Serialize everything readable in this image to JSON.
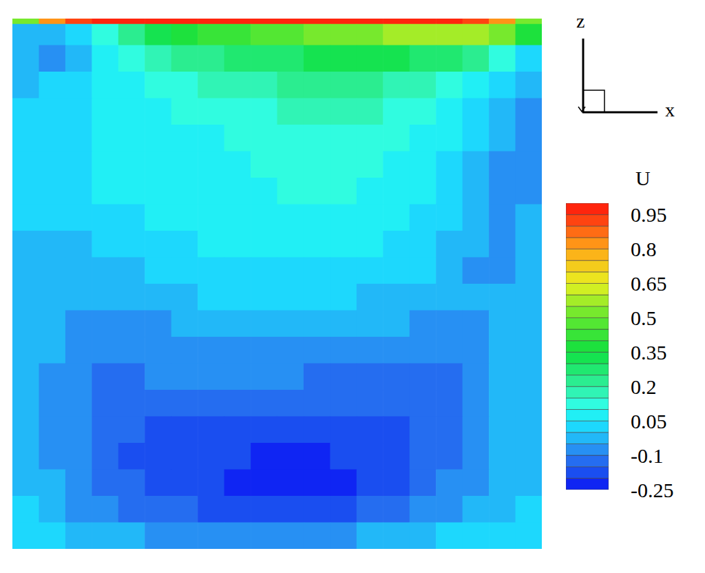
{
  "chart_data": {
    "type": "contour",
    "x_label": "x",
    "y_label": "z",
    "xlim": [
      0,
      1
    ],
    "ylim": [
      0,
      1
    ],
    "tick_labels": false,
    "x_edges": [
      0,
      0.05,
      0.1,
      0.15,
      0.2,
      0.25,
      0.3,
      0.35,
      0.4,
      0.45,
      0.5,
      0.55,
      0.6,
      0.65,
      0.7,
      0.75,
      0.8,
      0.85,
      0.9,
      0.95,
      1
    ],
    "z_edges": [
      1,
      0.99,
      0.95,
      0.9,
      0.85,
      0.8,
      0.75,
      0.7,
      0.65,
      0.6,
      0.55,
      0.5,
      0.45,
      0.4,
      0.35,
      0.3,
      0.25,
      0.2,
      0.15,
      0.1,
      0.05,
      0
    ],
    "values": [
      [
        0.5,
        0.8,
        0.9,
        0.96,
        0.97,
        0.97,
        0.97,
        0.97,
        0.97,
        0.97,
        0.97,
        0.97,
        0.97,
        0.97,
        0.97,
        0.97,
        0.96,
        0.9,
        0.8,
        0.5
      ],
      [
        -0.03,
        -0.05,
        0.0,
        0.1,
        0.2,
        0.3,
        0.35,
        0.4,
        0.42,
        0.45,
        0.47,
        0.5,
        0.5,
        0.52,
        0.55,
        0.55,
        0.55,
        0.55,
        0.5,
        0.35
      ],
      [
        -0.05,
        -0.07,
        -0.03,
        0.05,
        0.1,
        0.15,
        0.2,
        0.22,
        0.25,
        0.27,
        0.28,
        0.3,
        0.3,
        0.3,
        0.3,
        0.28,
        0.25,
        0.2,
        0.12,
        0.03
      ],
      [
        -0.04,
        0.0,
        0.02,
        0.05,
        0.08,
        0.1,
        0.13,
        0.15,
        0.17,
        0.18,
        0.2,
        0.2,
        0.2,
        0.2,
        0.18,
        0.16,
        0.12,
        0.07,
        0.0,
        -0.04
      ],
      [
        0.0,
        0.02,
        0.03,
        0.05,
        0.07,
        0.08,
        0.1,
        0.12,
        0.13,
        0.14,
        0.15,
        0.15,
        0.15,
        0.15,
        0.13,
        0.11,
        0.07,
        0.02,
        -0.04,
        -0.06
      ],
      [
        0.02,
        0.03,
        0.04,
        0.05,
        0.06,
        0.07,
        0.08,
        0.09,
        0.1,
        0.11,
        0.12,
        0.12,
        0.12,
        0.12,
        0.11,
        0.08,
        0.05,
        0.0,
        -0.05,
        -0.06
      ],
      [
        0.02,
        0.03,
        0.04,
        0.05,
        0.06,
        0.06,
        0.07,
        0.08,
        0.09,
        0.1,
        0.11,
        0.11,
        0.11,
        0.1,
        0.09,
        0.07,
        0.03,
        -0.02,
        -0.06,
        -0.06
      ],
      [
        0.02,
        0.03,
        0.04,
        0.05,
        0.05,
        0.06,
        0.06,
        0.07,
        0.08,
        0.09,
        0.1,
        0.1,
        0.1,
        0.09,
        0.07,
        0.05,
        0.02,
        -0.03,
        -0.07,
        -0.06
      ],
      [
        0.0,
        0.01,
        0.02,
        0.03,
        0.04,
        0.05,
        0.05,
        0.06,
        0.06,
        0.07,
        0.07,
        0.07,
        0.07,
        0.06,
        0.05,
        0.03,
        0.0,
        -0.04,
        -0.07,
        -0.05
      ],
      [
        -0.02,
        -0.02,
        -0.01,
        0.0,
        0.02,
        0.03,
        0.04,
        0.05,
        0.05,
        0.06,
        0.06,
        0.06,
        0.05,
        0.05,
        0.04,
        0.02,
        -0.02,
        -0.05,
        -0.07,
        -0.04
      ],
      [
        -0.02,
        -0.03,
        -0.03,
        -0.02,
        -0.01,
        0.0,
        0.02,
        0.03,
        0.04,
        0.04,
        0.04,
        0.04,
        0.04,
        0.03,
        0.02,
        0.0,
        -0.03,
        -0.06,
        -0.07,
        -0.04
      ],
      [
        -0.03,
        -0.04,
        -0.04,
        -0.04,
        -0.03,
        -0.02,
        -0.01,
        0.0,
        0.01,
        0.01,
        0.01,
        0.0,
        0.0,
        -0.01,
        -0.02,
        -0.03,
        -0.04,
        -0.05,
        -0.05,
        -0.02
      ],
      [
        -0.02,
        -0.04,
        -0.06,
        -0.07,
        -0.07,
        -0.06,
        -0.05,
        -0.04,
        -0.04,
        -0.04,
        -0.04,
        -0.04,
        -0.04,
        -0.04,
        -0.05,
        -0.06,
        -0.07,
        -0.07,
        -0.05,
        -0.02
      ],
      [
        -0.02,
        -0.05,
        -0.08,
        -0.09,
        -0.09,
        -0.08,
        -0.07,
        -0.07,
        -0.07,
        -0.07,
        -0.07,
        -0.07,
        -0.08,
        -0.08,
        -0.09,
        -0.1,
        -0.1,
        -0.09,
        -0.05,
        -0.02
      ],
      [
        -0.02,
        -0.06,
        -0.09,
        -0.11,
        -0.11,
        -0.1,
        -0.1,
        -0.1,
        -0.1,
        -0.1,
        -0.1,
        -0.11,
        -0.11,
        -0.12,
        -0.12,
        -0.12,
        -0.12,
        -0.09,
        -0.05,
        -0.02
      ],
      [
        -0.02,
        -0.06,
        -0.1,
        -0.12,
        -0.13,
        -0.14,
        -0.14,
        -0.14,
        -0.14,
        -0.14,
        -0.14,
        -0.15,
        -0.15,
        -0.15,
        -0.15,
        -0.14,
        -0.12,
        -0.09,
        -0.05,
        -0.02
      ],
      [
        -0.02,
        -0.06,
        -0.1,
        -0.13,
        -0.15,
        -0.17,
        -0.18,
        -0.18,
        -0.18,
        -0.18,
        -0.18,
        -0.18,
        -0.18,
        -0.18,
        -0.17,
        -0.15,
        -0.12,
        -0.08,
        -0.04,
        -0.02
      ],
      [
        -0.02,
        -0.06,
        -0.1,
        -0.13,
        -0.16,
        -0.18,
        -0.19,
        -0.2,
        -0.2,
        -0.21,
        -0.21,
        -0.21,
        -0.2,
        -0.2,
        -0.18,
        -0.15,
        -0.11,
        -0.07,
        -0.04,
        -0.02
      ],
      [
        -0.01,
        -0.05,
        -0.09,
        -0.12,
        -0.15,
        -0.17,
        -0.19,
        -0.2,
        -0.22,
        -0.23,
        -0.23,
        -0.22,
        -0.21,
        -0.19,
        -0.17,
        -0.14,
        -0.1,
        -0.06,
        -0.03,
        -0.01
      ],
      [
        0.0,
        -0.03,
        -0.07,
        -0.1,
        -0.12,
        -0.14,
        -0.15,
        -0.16,
        -0.17,
        -0.17,
        -0.17,
        -0.17,
        -0.16,
        -0.14,
        -0.12,
        -0.1,
        -0.07,
        -0.04,
        -0.02,
        0.0
      ],
      [
        0.01,
        0.0,
        -0.02,
        -0.04,
        -0.05,
        -0.06,
        -0.07,
        -0.07,
        -0.07,
        -0.07,
        -0.07,
        -0.07,
        -0.06,
        -0.05,
        -0.03,
        -0.01,
        0.0,
        0.01,
        0.01,
        0.01
      ]
    ],
    "colorbar": {
      "title": "U",
      "range": [
        -0.25,
        1.0
      ],
      "ticks": [
        -0.25,
        -0.1,
        0.05,
        0.2,
        0.35,
        0.5,
        0.65,
        0.8,
        0.95
      ],
      "step": 0.05
    }
  }
}
